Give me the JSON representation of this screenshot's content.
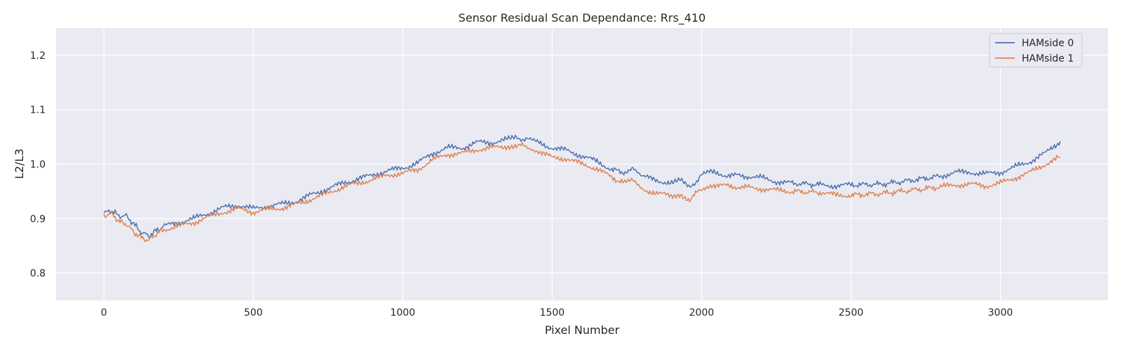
{
  "chart_data": {
    "type": "line",
    "title": "Sensor Residual Scan Dependance: Rrs_410",
    "xlabel": "Pixel Number",
    "ylabel": "L2/L3",
    "xlim": [
      -160,
      3360
    ],
    "ylim": [
      0.75,
      1.25
    ],
    "xticks": [
      0,
      500,
      1000,
      1500,
      2000,
      2500,
      3000
    ],
    "yticks": [
      0.8,
      0.9,
      1.0,
      1.1,
      1.2
    ],
    "grid": true,
    "legend_position": "top-right",
    "x": [
      0,
      25,
      50,
      75,
      100,
      125,
      150,
      175,
      200,
      250,
      300,
      350,
      400,
      450,
      500,
      550,
      600,
      650,
      700,
      750,
      800,
      850,
      900,
      950,
      1000,
      1050,
      1100,
      1150,
      1200,
      1250,
      1300,
      1350,
      1380,
      1420,
      1450,
      1500,
      1550,
      1600,
      1650,
      1700,
      1740,
      1770,
      1800,
      1850,
      1900,
      1930,
      1960,
      2000,
      2030,
      2080,
      2150,
      2200,
      2250,
      2300,
      2400,
      2450,
      2500,
      2600,
      2700,
      2800,
      2850,
      2900,
      2950,
      3000,
      3050,
      3100,
      3150,
      3200
    ],
    "series": [
      {
        "name": "HAMside 0",
        "color": "#4c72b0",
        "values": [
          0.91,
          0.915,
          0.905,
          0.905,
          0.89,
          0.875,
          0.868,
          0.878,
          0.886,
          0.893,
          0.9,
          0.91,
          0.92,
          0.925,
          0.918,
          0.923,
          0.927,
          0.933,
          0.945,
          0.955,
          0.965,
          0.973,
          0.98,
          0.988,
          0.993,
          1.002,
          1.02,
          1.03,
          1.03,
          1.04,
          1.04,
          1.045,
          1.048,
          1.045,
          1.04,
          1.03,
          1.025,
          1.015,
          1.005,
          0.99,
          0.985,
          0.995,
          0.978,
          0.97,
          0.965,
          0.97,
          0.955,
          0.98,
          0.985,
          0.98,
          0.978,
          0.975,
          0.968,
          0.965,
          0.962,
          0.96,
          0.962,
          0.963,
          0.97,
          0.978,
          0.985,
          0.985,
          0.982,
          0.985,
          0.995,
          1.005,
          1.02,
          1.042
        ]
      },
      {
        "name": "HAMside 1",
        "color": "#dd8452",
        "values": [
          0.905,
          0.91,
          0.895,
          0.89,
          0.875,
          0.865,
          0.86,
          0.872,
          0.88,
          0.886,
          0.893,
          0.903,
          0.912,
          0.918,
          0.912,
          0.917,
          0.92,
          0.927,
          0.937,
          0.947,
          0.958,
          0.965,
          0.972,
          0.98,
          0.983,
          0.99,
          1.008,
          1.018,
          1.02,
          1.027,
          1.03,
          1.033,
          1.035,
          1.032,
          1.025,
          1.012,
          1.01,
          1.0,
          0.992,
          0.975,
          0.965,
          0.97,
          0.955,
          0.946,
          0.942,
          0.945,
          0.935,
          0.955,
          0.962,
          0.96,
          0.957,
          0.955,
          0.952,
          0.95,
          0.948,
          0.943,
          0.943,
          0.946,
          0.952,
          0.958,
          0.962,
          0.963,
          0.96,
          0.965,
          0.975,
          0.985,
          1.0,
          1.013
        ]
      }
    ]
  },
  "colors": {
    "plot_bg": "#eaeaf2",
    "grid": "#ffffff",
    "text": "#262626"
  }
}
